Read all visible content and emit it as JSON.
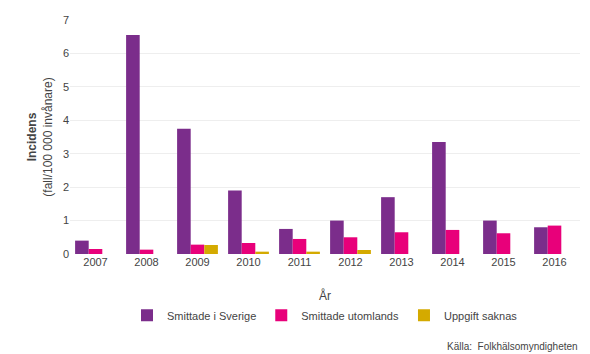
{
  "chart_data": {
    "type": "bar",
    "xlabel": "År",
    "ylabel": [
      "Incidens",
      "(fall/100 000 invånare)"
    ],
    "annotations": [
      "Källa:  Folkhälsomyndigheten"
    ],
    "categories": [
      "2007",
      "2008",
      "2009",
      "2010",
      "2011",
      "2012",
      "2013",
      "2014",
      "2015",
      "2016"
    ],
    "series": [
      {
        "name": "Smittade i Sverige",
        "color": "#7B2D8B",
        "values": [
          0.4,
          6.55,
          3.75,
          1.9,
          0.75,
          1.0,
          1.7,
          3.35,
          1.0,
          0.8
        ]
      },
      {
        "name": "Smittade utomlands",
        "color": "#E8007A",
        "values": [
          0.15,
          0.13,
          0.28,
          0.33,
          0.45,
          0.5,
          0.65,
          0.72,
          0.62,
          0.85
        ]
      },
      {
        "name": "Uppgift saknas",
        "color": "#D4AA00",
        "values": [
          0.0,
          0.0,
          0.27,
          0.07,
          0.07,
          0.12,
          0.0,
          0.0,
          0.0,
          0.0
        ]
      }
    ],
    "ylim": [
      0,
      7
    ],
    "yticks": [
      0,
      1,
      2,
      3,
      4,
      5,
      6,
      7
    ],
    "grid": true,
    "legend": "bottom"
  }
}
